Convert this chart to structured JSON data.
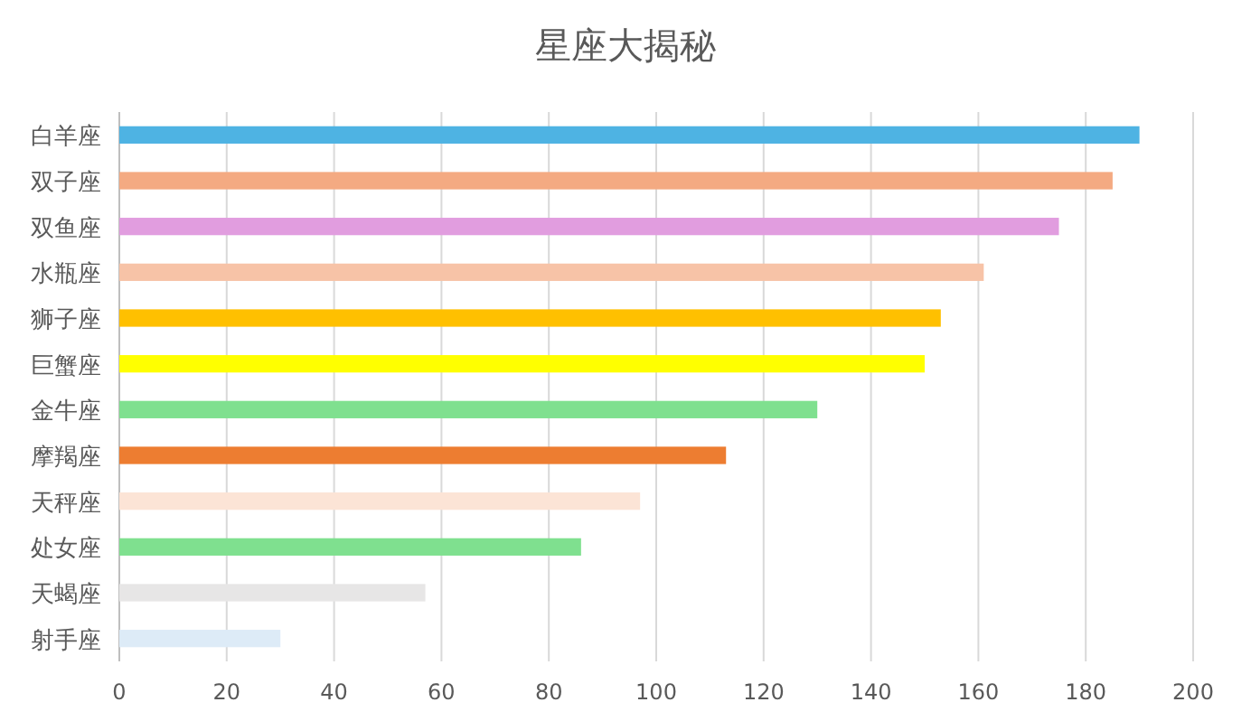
{
  "chart_data": {
    "type": "bar",
    "orientation": "horizontal",
    "title": "星座大揭秘",
    "categories": [
      "白羊座",
      "双子座",
      "双鱼座",
      "水瓶座",
      "狮子座",
      "巨蟹座",
      "金牛座",
      "摩羯座",
      "天秤座",
      "处女座",
      "天蝎座",
      "射手座"
    ],
    "values": [
      190,
      185,
      175,
      161,
      153,
      150,
      130,
      113,
      97,
      86,
      57,
      30
    ],
    "colors": [
      "#4eb3e3",
      "#f4aa82",
      "#e19ddf",
      "#f7c3a7",
      "#ffc000",
      "#ffff00",
      "#7fe08f",
      "#ed7d31",
      "#fce4d6",
      "#7fe08f",
      "#e7e6e6",
      "#ddebf7"
    ],
    "xlim": [
      0,
      200
    ],
    "xticks": [
      0,
      20,
      40,
      60,
      80,
      100,
      120,
      140,
      160,
      180,
      200
    ],
    "grid": "x"
  }
}
